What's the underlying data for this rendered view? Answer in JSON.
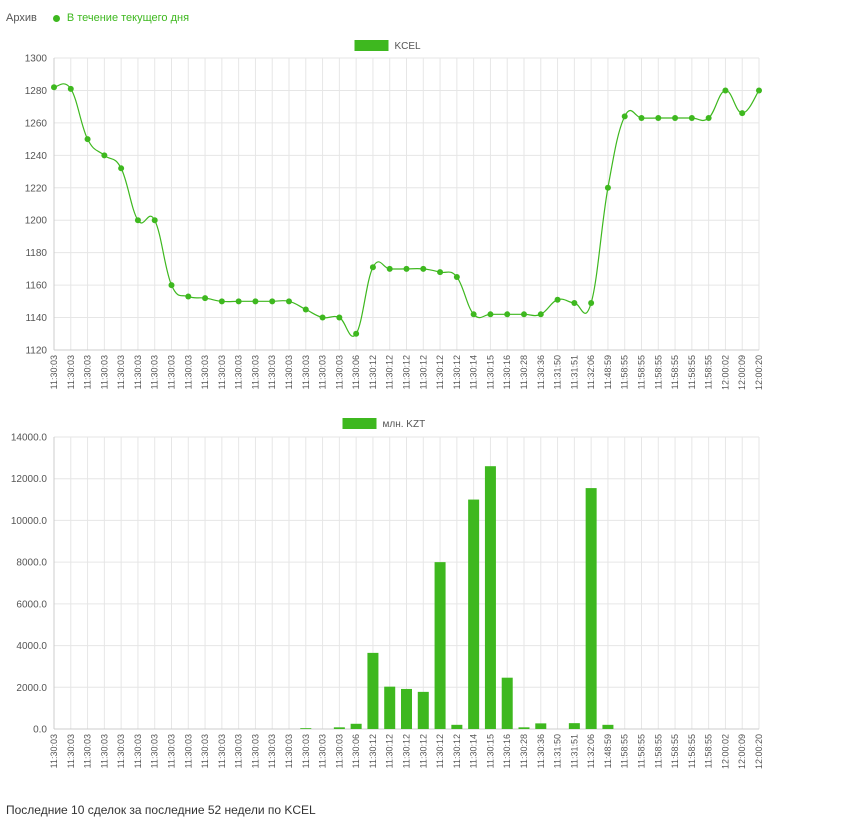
{
  "tabs": {
    "archive": "Архив",
    "today": "В течение текущего дня"
  },
  "footer_text": "Последние 10 сделок за последние 52 недели по KCEL",
  "colors": {
    "accent": "#3eb81f",
    "grid": "#e6e6e6",
    "axis": "#cccccc"
  },
  "chart_data": [
    {
      "type": "line",
      "legend": "KCEL",
      "legend_position": "top-center",
      "grid": true,
      "ylim": [
        1120,
        1300
      ],
      "yticks": [
        1120,
        1140,
        1160,
        1180,
        1200,
        1220,
        1240,
        1260,
        1280,
        1300
      ],
      "categories": [
        "11:30:03",
        "11:30:03",
        "11:30:03",
        "11:30:03",
        "11:30:03",
        "11:30:03",
        "11:30:03",
        "11:30:03",
        "11:30:03",
        "11:30:03",
        "11:30:03",
        "11:30:03",
        "11:30:03",
        "11:30:03",
        "11:30:03",
        "11:30:03",
        "11:30:03",
        "11:30:03",
        "11:30:06",
        "11:30:12",
        "11:30:12",
        "11:30:12",
        "11:30:12",
        "11:30:12",
        "11:30:12",
        "11:30:14",
        "11:30:15",
        "11:30:16",
        "11:30:28",
        "11:30:36",
        "11:31:50",
        "11:31:51",
        "11:32:06",
        "11:48:59",
        "11:58:55",
        "11:58:55",
        "11:58:55",
        "11:58:55",
        "11:58:55",
        "11:58:55",
        "12:00:02",
        "12:00:09",
        "12:00:20"
      ],
      "values": [
        1282,
        1281,
        1250,
        1240,
        1232,
        1200,
        1200,
        1160,
        1153,
        1152,
        1150,
        1150,
        1150,
        1150,
        1150,
        1145,
        1140,
        1140,
        1130,
        1171,
        1170,
        1170,
        1170,
        1168,
        1165,
        1142,
        1142,
        1142,
        1142,
        1142,
        1151,
        1149,
        1149,
        1220,
        1264,
        1263,
        1263,
        1263,
        1263,
        1263,
        1280,
        1266,
        1280
      ]
    },
    {
      "type": "bar",
      "legend": "млн. KZT",
      "legend_position": "top-center",
      "grid": true,
      "ylim": [
        0,
        14000
      ],
      "yticks": [
        "0.0",
        "2000.0",
        "4000.0",
        "6000.0",
        "8000.0",
        "10000.0",
        "12000.0",
        "14000.0"
      ],
      "categories": [
        "11:30:03",
        "11:30:03",
        "11:30:03",
        "11:30:03",
        "11:30:03",
        "11:30:03",
        "11:30:03",
        "11:30:03",
        "11:30:03",
        "11:30:03",
        "11:30:03",
        "11:30:03",
        "11:30:03",
        "11:30:03",
        "11:30:03",
        "11:30:03",
        "11:30:03",
        "11:30:03",
        "11:30:06",
        "11:30:12",
        "11:30:12",
        "11:30:12",
        "11:30:12",
        "11:30:12",
        "11:30:12",
        "11:30:14",
        "11:30:15",
        "11:30:16",
        "11:30:28",
        "11:30:36",
        "11:31:50",
        "11:31:51",
        "11:32:06",
        "11:48:59",
        "11:58:55",
        "11:58:55",
        "11:58:55",
        "11:58:55",
        "11:58:55",
        "11:58:55",
        "12:00:02",
        "12:00:09",
        "12:00:20"
      ],
      "values": [
        0,
        0,
        0,
        0,
        0,
        0,
        0,
        0,
        0,
        0,
        0,
        0,
        0,
        0,
        0,
        40,
        0,
        80,
        250,
        3650,
        2030,
        1920,
        1780,
        8000,
        200,
        11000,
        12600,
        2460,
        80,
        270,
        0,
        280,
        11550,
        200,
        0,
        0,
        0,
        0,
        0,
        0,
        0,
        0,
        0
      ]
    }
  ]
}
